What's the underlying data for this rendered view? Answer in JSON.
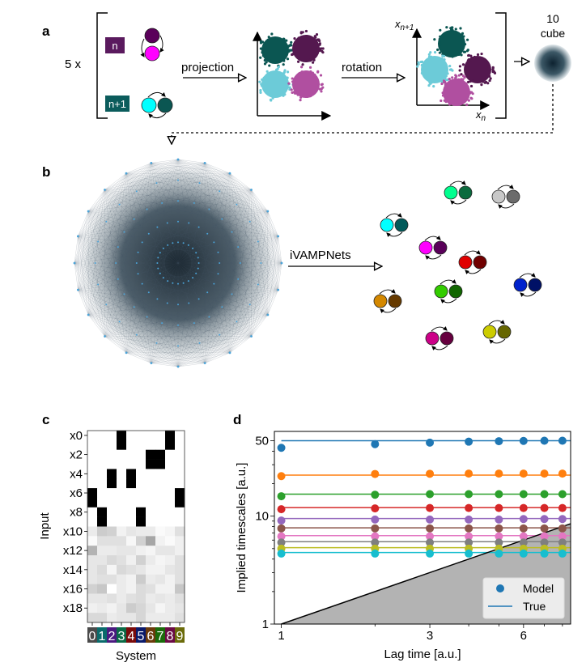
{
  "panel_a": {
    "label": "a",
    "multiplier": "5 x",
    "box_n": "n",
    "box_n1": "n+1",
    "projection": "projection",
    "rotation": "rotation",
    "axis_y": "x",
    "axis_y_sub": "n+1",
    "axis_x": "x",
    "axis_x_sub": "n",
    "cube_num": "10",
    "cube_word": "cube",
    "colors": {
      "box_n": "#5a1a5e",
      "box_n1": "#0b5c5c",
      "teal": "#0b5652",
      "purple": "#54184f",
      "lightblue": "#6ccbd8",
      "pink": "#b04fa0"
    }
  },
  "panel_b": {
    "label": "b",
    "arrow_label": "iVAMPNets",
    "pairs": [
      {
        "light": "#00ff8f",
        "dark": "#0b6b3e"
      },
      {
        "light": "#c8c8c8",
        "dark": "#6b6b6b"
      },
      {
        "light": "#00ffff",
        "dark": "#005a5a"
      },
      {
        "light": "#ff00ff",
        "dark": "#5a005a"
      },
      {
        "light": "#e00000",
        "dark": "#700000"
      },
      {
        "light": "#0022cc",
        "dark": "#001166"
      },
      {
        "light": "#33cc00",
        "dark": "#116600"
      },
      {
        "light": "#d48800",
        "dark": "#663a00"
      },
      {
        "light": "#cc0088",
        "dark": "#66003f"
      },
      {
        "light": "#cccc00",
        "dark": "#666600"
      }
    ]
  },
  "panel_c": {
    "label": "c",
    "ylabel": "Input",
    "xlabel": "System",
    "row_labels": [
      "x0",
      "x2",
      "x4",
      "x6",
      "x8",
      "x10",
      "x12",
      "x14",
      "x16",
      "x18"
    ],
    "systems": [
      "0",
      "1",
      "2",
      "3",
      "4",
      "5",
      "6",
      "7",
      "8",
      "9"
    ],
    "system_colors": [
      "#4a4a4a",
      "#0a6b6b",
      "#4b1a80",
      "#0b6b46",
      "#7a0a0a",
      "#0a1a6b",
      "#6b3a0a",
      "#1a6b0a",
      "#6b0a45",
      "#6b6b0a"
    ],
    "matrix": [
      [
        0,
        0,
        0,
        1,
        0,
        0,
        0,
        0,
        1,
        0
      ],
      [
        0,
        0,
        0,
        1,
        0,
        0,
        0,
        0,
        1,
        0
      ],
      [
        0,
        0,
        0,
        0,
        0,
        0,
        1,
        1,
        0,
        0
      ],
      [
        0,
        0,
        0,
        0,
        0,
        0,
        1,
        1,
        0,
        0
      ],
      [
        0,
        0,
        1,
        0,
        1,
        0,
        0,
        0,
        0,
        0
      ],
      [
        0,
        0,
        1,
        0,
        1,
        0,
        0,
        0,
        0,
        0
      ],
      [
        1,
        0,
        0,
        0,
        0,
        0,
        0,
        0,
        0,
        1
      ],
      [
        1,
        0,
        0,
        0,
        0,
        0,
        0,
        0,
        0,
        1
      ],
      [
        0,
        1,
        0,
        0,
        0,
        1,
        0,
        0,
        0,
        0
      ],
      [
        0,
        1,
        0,
        0,
        0,
        1,
        0,
        0,
        0,
        0
      ],
      [
        0.08,
        0.2,
        0.18,
        0.05,
        0.1,
        0.08,
        0.08,
        0.02,
        0.04,
        0.12
      ],
      [
        0.02,
        0.12,
        0.12,
        0.12,
        0.03,
        0.18,
        0.35,
        0.05,
        0.02,
        0.06
      ],
      [
        0.3,
        0.08,
        0.08,
        0.1,
        0.1,
        0.06,
        0.04,
        0.1,
        0.1,
        0.06
      ],
      [
        0.1,
        0.1,
        0.15,
        0.12,
        0.06,
        0.18,
        0.08,
        0.04,
        0.06,
        0.12
      ],
      [
        0.1,
        0.14,
        0.04,
        0.15,
        0.12,
        0.1,
        0.05,
        0.05,
        0.1,
        0.12
      ],
      [
        0.1,
        0.12,
        0.12,
        0.08,
        0.05,
        0.2,
        0.08,
        0.1,
        0.05,
        0.12
      ],
      [
        0.18,
        0.22,
        0.0,
        0.08,
        0.05,
        0.14,
        0.12,
        0.05,
        0.05,
        0.22
      ],
      [
        0.1,
        0.1,
        0.12,
        0.08,
        0.12,
        0.14,
        0.08,
        0.1,
        0.08,
        0.12
      ],
      [
        0.06,
        0.08,
        0.05,
        0.1,
        0.2,
        0.16,
        0.1,
        0.04,
        0.08,
        0.1
      ],
      [
        0.15,
        0.15,
        0.08,
        0.1,
        0.1,
        0.16,
        0.08,
        0.08,
        0.08,
        0.12
      ]
    ]
  },
  "chart_data": {
    "type": "scatter",
    "label": "d",
    "title": "",
    "xlabel": "Lag time [a.u.]",
    "ylabel": "Implied timescales [a.u.]",
    "xscale": "log",
    "yscale": "log",
    "xlim": [
      0.95,
      8.5
    ],
    "ylim": [
      1,
      61
    ],
    "xticks": [
      "1",
      "3",
      "6"
    ],
    "yticks": [
      "1",
      "10",
      "50"
    ],
    "x": [
      1,
      2,
      3,
      4,
      5,
      6,
      7,
      8
    ],
    "legend": {
      "placement": "lower-right",
      "model": "Model",
      "true": "True"
    },
    "series": [
      {
        "color": "#1f77b4",
        "true": 50,
        "model": [
          43,
          46.5,
          48,
          49,
          49.5,
          49.8,
          50,
          50
        ]
      },
      {
        "color": "#ff7f0e",
        "true": 24,
        "model": [
          23.5,
          24.6,
          24.7,
          24.8,
          24.8,
          24.8,
          24.8,
          24.8
        ]
      },
      {
        "color": "#2ca02c",
        "true": 16,
        "model": [
          15.3,
          15.8,
          16,
          16,
          16,
          16,
          16,
          16
        ]
      },
      {
        "color": "#d62728",
        "true": 12,
        "model": [
          11.6,
          11.8,
          11.9,
          11.9,
          11.9,
          11.9,
          11.9,
          11.9
        ]
      },
      {
        "color": "#9467bd",
        "true": 9.5,
        "model": [
          9.1,
          9.3,
          9.3,
          9.3,
          9.3,
          9.4,
          9.4,
          9.4
        ]
      },
      {
        "color": "#8c564b",
        "true": 7.8,
        "model": [
          7.7,
          7.7,
          7.7,
          7.7,
          7.7,
          7.7,
          7.7,
          7.7
        ]
      },
      {
        "color": "#e377c2",
        "true": 6.6,
        "model": [
          6.5,
          6.5,
          6.5,
          6.5,
          6.5,
          6.5,
          6.5,
          6.5
        ]
      },
      {
        "color": "#7f7f7f",
        "true": 5.8,
        "model": [
          5.7,
          5.7,
          5.7,
          5.7,
          5.7,
          5.7,
          5.7,
          5.7
        ]
      },
      {
        "color": "#bcbd22",
        "true": 5.1,
        "model": [
          5.0,
          5.0,
          5.0,
          5.0,
          5.0,
          5.0,
          5.0,
          5.0
        ]
      },
      {
        "color": "#17becf",
        "true": 4.6,
        "model": [
          4.5,
          4.5,
          4.5,
          4.5,
          4.5,
          4.5,
          4.5,
          4.5
        ]
      }
    ]
  }
}
